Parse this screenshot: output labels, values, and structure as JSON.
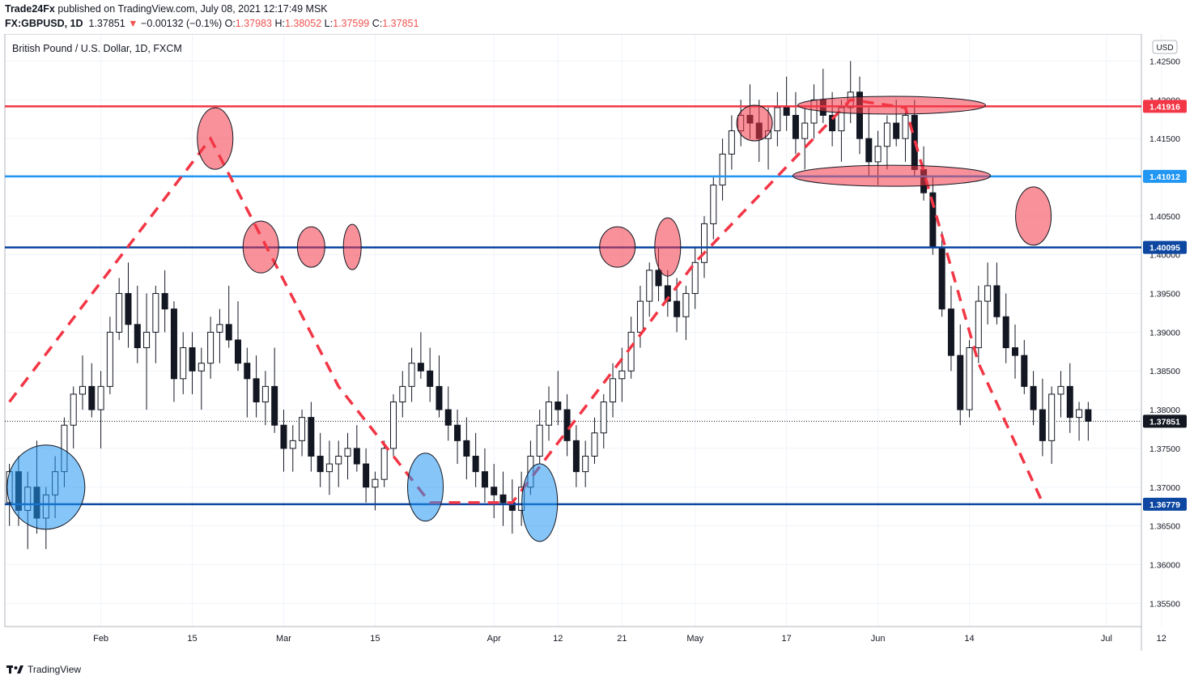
{
  "header": {
    "publisher": "Trade24Fx",
    "published_text": " published on TradingView.com, July 08, 2021 12:17:49 MSK",
    "symbol": "FX:GBPUSD, 1D",
    "last": "1.37851",
    "change": "−0.00132 (−0.1%)",
    "o_label": "O:",
    "o": "1.37983",
    "h_label": "H:",
    "h": "1.38052",
    "l_label": "L:",
    "l": "1.37599",
    "c_label": "C:",
    "c": "1.37851"
  },
  "footer": {
    "brand": "TradingView"
  },
  "chart_data": {
    "type": "candlestick",
    "title": "British Pound / U.S. Dollar, 1D, FXCM",
    "currency": "USD",
    "ylim": [
      1.352,
      1.4285
    ],
    "y_ticks": [
      "1.42500",
      "1.42000",
      "1.41500",
      "1.41000",
      "1.40500",
      "1.40000",
      "1.39500",
      "1.39000",
      "1.38500",
      "1.38000",
      "1.37500",
      "1.37000",
      "1.36500",
      "1.36000",
      "1.35500"
    ],
    "x_labels": [
      {
        "label": "Feb",
        "i": 10
      },
      {
        "label": "15",
        "i": 20
      },
      {
        "label": "Mar",
        "i": 30
      },
      {
        "label": "15",
        "i": 40
      },
      {
        "label": "Apr",
        "i": 53
      },
      {
        "label": "12",
        "i": 60
      },
      {
        "label": "21",
        "i": 67
      },
      {
        "label": "May",
        "i": 75
      },
      {
        "label": "17",
        "i": 85
      },
      {
        "label": "Jun",
        "i": 95
      },
      {
        "label": "14",
        "i": 105
      },
      {
        "label": "Jul",
        "i": 120
      },
      {
        "label": "12",
        "i": 126
      }
    ],
    "candles": [
      [
        1.368,
        1.373,
        1.365,
        1.372
      ],
      [
        1.372,
        1.374,
        1.365,
        1.367
      ],
      [
        1.367,
        1.372,
        1.362,
        1.37
      ],
      [
        1.37,
        1.376,
        1.364,
        1.366
      ],
      [
        1.366,
        1.37,
        1.362,
        1.369
      ],
      [
        1.369,
        1.374,
        1.366,
        1.372
      ],
      [
        1.372,
        1.379,
        1.37,
        1.378
      ],
      [
        1.378,
        1.383,
        1.375,
        1.382
      ],
      [
        1.382,
        1.387,
        1.38,
        1.383
      ],
      [
        1.383,
        1.386,
        1.379,
        1.38
      ],
      [
        1.38,
        1.385,
        1.375,
        1.383
      ],
      [
        1.383,
        1.392,
        1.382,
        1.39
      ],
      [
        1.39,
        1.397,
        1.389,
        1.395
      ],
      [
        1.395,
        1.399,
        1.388,
        1.391
      ],
      [
        1.391,
        1.396,
        1.386,
        1.388
      ],
      [
        1.388,
        1.395,
        1.38,
        1.39
      ],
      [
        1.39,
        1.396,
        1.386,
        1.395
      ],
      [
        1.395,
        1.398,
        1.39,
        1.393
      ],
      [
        1.393,
        1.394,
        1.381,
        1.384
      ],
      [
        1.384,
        1.39,
        1.382,
        1.388
      ],
      [
        1.388,
        1.39,
        1.382,
        1.385
      ],
      [
        1.385,
        1.388,
        1.38,
        1.386
      ],
      [
        1.386,
        1.392,
        1.384,
        1.39
      ],
      [
        1.39,
        1.393,
        1.386,
        1.391
      ],
      [
        1.391,
        1.396,
        1.388,
        1.389
      ],
      [
        1.389,
        1.394,
        1.385,
        1.386
      ],
      [
        1.386,
        1.388,
        1.379,
        1.384
      ],
      [
        1.384,
        1.387,
        1.379,
        1.381
      ],
      [
        1.381,
        1.385,
        1.378,
        1.383
      ],
      [
        1.383,
        1.388,
        1.377,
        1.378
      ],
      [
        1.378,
        1.38,
        1.372,
        1.375
      ],
      [
        1.375,
        1.378,
        1.372,
        1.376
      ],
      [
        1.376,
        1.38,
        1.374,
        1.379
      ],
      [
        1.379,
        1.381,
        1.372,
        1.374
      ],
      [
        1.374,
        1.377,
        1.37,
        1.372
      ],
      [
        1.372,
        1.376,
        1.369,
        1.373
      ],
      [
        1.373,
        1.376,
        1.37,
        1.374
      ],
      [
        1.374,
        1.377,
        1.371,
        1.375
      ],
      [
        1.375,
        1.378,
        1.372,
        1.373
      ],
      [
        1.373,
        1.375,
        1.368,
        1.37
      ],
      [
        1.37,
        1.372,
        1.367,
        1.371
      ],
      [
        1.371,
        1.376,
        1.37,
        1.375
      ],
      [
        1.375,
        1.382,
        1.374,
        1.381
      ],
      [
        1.381,
        1.385,
        1.379,
        1.383
      ],
      [
        1.383,
        1.388,
        1.381,
        1.386
      ],
      [
        1.386,
        1.39,
        1.384,
        1.385
      ],
      [
        1.385,
        1.388,
        1.381,
        1.383
      ],
      [
        1.383,
        1.387,
        1.379,
        1.38
      ],
      [
        1.38,
        1.383,
        1.376,
        1.378
      ],
      [
        1.378,
        1.38,
        1.373,
        1.376
      ],
      [
        1.376,
        1.379,
        1.371,
        1.374
      ],
      [
        1.374,
        1.377,
        1.37,
        1.372
      ],
      [
        1.372,
        1.375,
        1.368,
        1.37
      ],
      [
        1.37,
        1.373,
        1.366,
        1.369
      ],
      [
        1.369,
        1.372,
        1.365,
        1.368
      ],
      [
        1.368,
        1.371,
        1.364,
        1.367
      ],
      [
        1.367,
        1.372,
        1.365,
        1.37
      ],
      [
        1.37,
        1.376,
        1.369,
        1.374
      ],
      [
        1.374,
        1.38,
        1.373,
        1.378
      ],
      [
        1.378,
        1.383,
        1.376,
        1.381
      ],
      [
        1.381,
        1.385,
        1.378,
        1.38
      ],
      [
        1.38,
        1.382,
        1.374,
        1.376
      ],
      [
        1.376,
        1.378,
        1.37,
        1.372
      ],
      [
        1.372,
        1.376,
        1.37,
        1.374
      ],
      [
        1.374,
        1.379,
        1.373,
        1.377
      ],
      [
        1.377,
        1.382,
        1.375,
        1.381
      ],
      [
        1.381,
        1.386,
        1.379,
        1.384
      ],
      [
        1.384,
        1.388,
        1.381,
        1.385
      ],
      [
        1.385,
        1.392,
        1.384,
        1.39
      ],
      [
        1.39,
        1.396,
        1.388,
        1.394
      ],
      [
        1.394,
        1.399,
        1.392,
        1.398
      ],
      [
        1.398,
        1.401,
        1.394,
        1.396
      ],
      [
        1.396,
        1.398,
        1.392,
        1.394
      ],
      [
        1.394,
        1.397,
        1.39,
        1.392
      ],
      [
        1.392,
        1.396,
        1.389,
        1.395
      ],
      [
        1.395,
        1.401,
        1.393,
        1.399
      ],
      [
        1.399,
        1.405,
        1.397,
        1.404
      ],
      [
        1.404,
        1.41,
        1.402,
        1.409
      ],
      [
        1.409,
        1.415,
        1.407,
        1.413
      ],
      [
        1.413,
        1.418,
        1.411,
        1.416
      ],
      [
        1.416,
        1.42,
        1.414,
        1.418
      ],
      [
        1.418,
        1.422,
        1.415,
        1.417
      ],
      [
        1.417,
        1.42,
        1.412,
        1.415
      ],
      [
        1.415,
        1.419,
        1.411,
        1.416
      ],
      [
        1.416,
        1.421,
        1.414,
        1.419
      ],
      [
        1.419,
        1.423,
        1.416,
        1.418
      ],
      [
        1.418,
        1.421,
        1.413,
        1.415
      ],
      [
        1.415,
        1.419,
        1.411,
        1.417
      ],
      [
        1.417,
        1.422,
        1.415,
        1.42
      ],
      [
        1.42,
        1.424,
        1.417,
        1.418
      ],
      [
        1.418,
        1.421,
        1.414,
        1.416
      ],
      [
        1.416,
        1.42,
        1.412,
        1.419
      ],
      [
        1.419,
        1.425,
        1.417,
        1.421
      ],
      [
        1.421,
        1.423,
        1.413,
        1.415
      ],
      [
        1.415,
        1.419,
        1.41,
        1.412
      ],
      [
        1.412,
        1.416,
        1.409,
        1.414
      ],
      [
        1.414,
        1.418,
        1.411,
        1.417
      ],
      [
        1.417,
        1.42,
        1.414,
        1.415
      ],
      [
        1.415,
        1.419,
        1.412,
        1.418
      ],
      [
        1.418,
        1.42,
        1.41,
        1.411
      ],
      [
        1.411,
        1.414,
        1.407,
        1.408
      ],
      [
        1.408,
        1.41,
        1.4,
        1.401
      ],
      [
        1.401,
        1.403,
        1.392,
        1.393
      ],
      [
        1.393,
        1.396,
        1.385,
        1.387
      ],
      [
        1.387,
        1.391,
        1.378,
        1.38
      ],
      [
        1.38,
        1.389,
        1.379,
        1.388
      ],
      [
        1.388,
        1.396,
        1.386,
        1.394
      ],
      [
        1.394,
        1.399,
        1.391,
        1.396
      ],
      [
        1.396,
        1.399,
        1.391,
        1.392
      ],
      [
        1.392,
        1.395,
        1.386,
        1.388
      ],
      [
        1.388,
        1.391,
        1.384,
        1.387
      ],
      [
        1.387,
        1.389,
        1.382,
        1.383
      ],
      [
        1.383,
        1.385,
        1.378,
        1.38
      ],
      [
        1.38,
        1.384,
        1.374,
        1.376
      ],
      [
        1.376,
        1.383,
        1.373,
        1.382
      ],
      [
        1.382,
        1.385,
        1.379,
        1.383
      ],
      [
        1.383,
        1.386,
        1.377,
        1.379
      ],
      [
        1.379,
        1.381,
        1.376,
        1.38
      ],
      [
        1.38,
        1.381,
        1.376,
        1.3785
      ]
    ],
    "levels": [
      {
        "price": 1.41916,
        "label": "1.41916",
        "color": "#f23645"
      },
      {
        "price": 1.41012,
        "label": "1.41012",
        "color": "#2196f3"
      },
      {
        "price": 1.40095,
        "label": "1.40095",
        "color": "#0d47a1"
      },
      {
        "price": 1.36779,
        "label": "1.36779",
        "color": "#0d47a1"
      }
    ],
    "last_price": {
      "price": 1.37851,
      "label": "1.37851",
      "color": "#131722"
    }
  }
}
